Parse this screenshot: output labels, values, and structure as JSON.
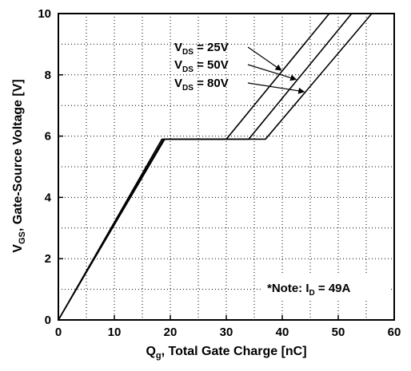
{
  "chart_data": {
    "type": "line",
    "xlabel": {
      "main": "Q",
      "sub": "g",
      "rest": ", Total Gate Charge [nC]"
    },
    "ylabel": {
      "main": "V",
      "sub": "GS",
      "rest": ", Gate-Source Voltage [V]"
    },
    "xlim": [
      0,
      60
    ],
    "ylim": [
      0,
      10
    ],
    "x_ticks": [
      "0",
      "10",
      "20",
      "30",
      "40",
      "50",
      "60"
    ],
    "y_ticks": [
      "0",
      "2",
      "4",
      "6",
      "8",
      "10"
    ],
    "grid": "dotted",
    "series": [
      {
        "name": {
          "main": "V",
          "sub": "DS",
          "rest": " = 25V"
        },
        "x": [
          0,
          18.5,
          30,
          48.4
        ],
        "y": [
          0,
          5.9,
          5.9,
          10
        ]
      },
      {
        "name": {
          "main": "V",
          "sub": "DS",
          "rest": " = 50V"
        },
        "x": [
          0,
          18.8,
          34,
          52.4
        ],
        "y": [
          0,
          5.9,
          5.9,
          10
        ]
      },
      {
        "name": {
          "main": "V",
          "sub": "DS",
          "rest": " = 80V"
        },
        "x": [
          0,
          19.0,
          37,
          56
        ],
        "y": [
          0,
          5.9,
          5.9,
          10
        ]
      }
    ],
    "note": {
      "prefix": "*Note: I",
      "sub": "D",
      "rest": " = 49A"
    }
  }
}
